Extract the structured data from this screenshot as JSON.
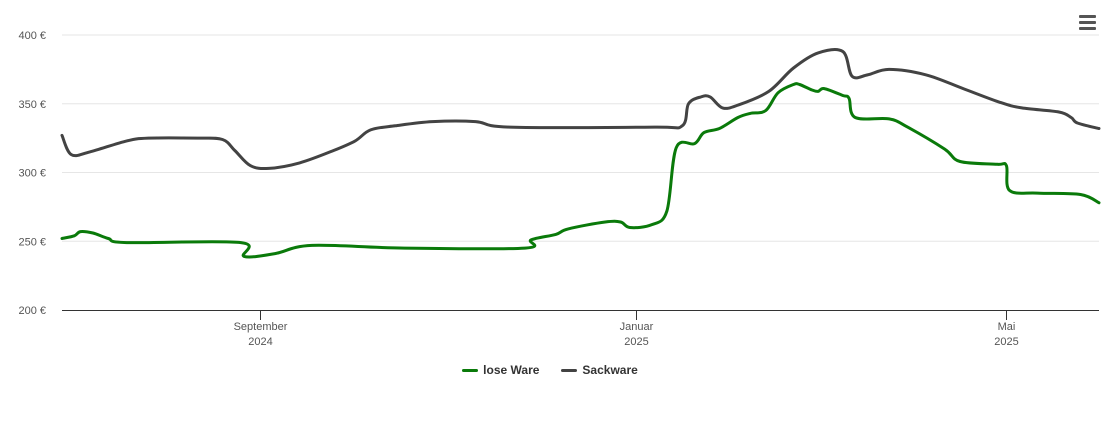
{
  "menu": {
    "icon": "hamburger-menu-icon"
  },
  "chart_data": {
    "type": "line",
    "title": "",
    "xlabel": "",
    "ylabel": "",
    "ylim": [
      200,
      400
    ],
    "y_ticks": [
      {
        "value": 200,
        "label": "200 €"
      },
      {
        "value": 250,
        "label": "250 €"
      },
      {
        "value": 300,
        "label": "300 €"
      },
      {
        "value": 350,
        "label": "350 €"
      },
      {
        "value": 400,
        "label": "400 €"
      }
    ],
    "xlim": [
      "2024-06-29",
      "2025-05-31"
    ],
    "x_ticks": [
      {
        "date": "2024-09-01",
        "line1": "September",
        "line2": "2024"
      },
      {
        "date": "2025-01-01",
        "line1": "Januar",
        "line2": "2025"
      },
      {
        "date": "2025-05-01",
        "line1": "Mai",
        "line2": "2025"
      }
    ],
    "grid": true,
    "legend_position": "bottom-center",
    "series": [
      {
        "name": "lose Ware",
        "color": "#0a7a0a",
        "points": [
          [
            "2024-06-29",
            252
          ],
          [
            "2024-07-03",
            254
          ],
          [
            "2024-07-05",
            257
          ],
          [
            "2024-07-09",
            256
          ],
          [
            "2024-07-14",
            252
          ],
          [
            "2024-07-20",
            249
          ],
          [
            "2024-08-26",
            249
          ],
          [
            "2024-08-27",
            239
          ],
          [
            "2024-09-06",
            241
          ],
          [
            "2024-09-18",
            247
          ],
          [
            "2024-10-18",
            245
          ],
          [
            "2024-11-26",
            245
          ],
          [
            "2024-11-28",
            251
          ],
          [
            "2024-12-06",
            255
          ],
          [
            "2024-12-10",
            259
          ],
          [
            "2024-12-22",
            264
          ],
          [
            "2024-12-27",
            264
          ],
          [
            "2024-12-30",
            260
          ],
          [
            "2025-01-06",
            262
          ],
          [
            "2025-01-11",
            272
          ],
          [
            "2025-01-14",
            318
          ],
          [
            "2025-01-20",
            321
          ],
          [
            "2025-01-23",
            329
          ],
          [
            "2025-01-28",
            332
          ],
          [
            "2025-02-03",
            340
          ],
          [
            "2025-02-07",
            343
          ],
          [
            "2025-02-12",
            345
          ],
          [
            "2025-02-16",
            358
          ],
          [
            "2025-02-21",
            364
          ],
          [
            "2025-02-23",
            364
          ],
          [
            "2025-02-27",
            360
          ],
          [
            "2025-03-01",
            359
          ],
          [
            "2025-03-03",
            361
          ],
          [
            "2025-03-09",
            356
          ],
          [
            "2025-03-11",
            354
          ],
          [
            "2025-03-13",
            340
          ],
          [
            "2025-03-24",
            339
          ],
          [
            "2025-03-30",
            333
          ],
          [
            "2025-04-11",
            317
          ],
          [
            "2025-04-16",
            308
          ],
          [
            "2025-04-28",
            306
          ],
          [
            "2025-05-01",
            305
          ],
          [
            "2025-05-02",
            287
          ],
          [
            "2025-05-11",
            285
          ],
          [
            "2025-05-25",
            284
          ],
          [
            "2025-05-31",
            278
          ]
        ]
      },
      {
        "name": "Sackware",
        "color": "#434343",
        "points": [
          [
            "2024-06-29",
            327
          ],
          [
            "2024-07-02",
            313
          ],
          [
            "2024-07-08",
            315
          ],
          [
            "2024-07-20",
            323
          ],
          [
            "2024-07-27",
            325
          ],
          [
            "2024-08-12",
            325
          ],
          [
            "2024-08-20",
            324
          ],
          [
            "2024-08-24",
            316
          ],
          [
            "2024-08-29",
            305
          ],
          [
            "2024-09-04",
            303
          ],
          [
            "2024-09-14",
            307
          ],
          [
            "2024-09-25",
            316
          ],
          [
            "2024-10-02",
            323
          ],
          [
            "2024-10-07",
            331
          ],
          [
            "2024-10-15",
            334
          ],
          [
            "2024-10-27",
            337
          ],
          [
            "2024-11-10",
            337
          ],
          [
            "2024-11-21",
            333
          ],
          [
            "2025-01-07",
            333
          ],
          [
            "2025-01-16",
            334
          ],
          [
            "2025-01-18",
            350
          ],
          [
            "2025-01-22",
            355
          ],
          [
            "2025-01-25",
            355
          ],
          [
            "2025-01-29",
            347
          ],
          [
            "2025-02-03",
            349
          ],
          [
            "2025-02-13",
            359
          ],
          [
            "2025-02-21",
            376
          ],
          [
            "2025-03-01",
            387
          ],
          [
            "2025-03-09",
            388
          ],
          [
            "2025-03-12",
            370
          ],
          [
            "2025-03-17",
            371
          ],
          [
            "2025-03-24",
            375
          ],
          [
            "2025-04-05",
            371
          ],
          [
            "2025-04-17",
            361
          ],
          [
            "2025-04-29",
            351
          ],
          [
            "2025-05-06",
            347
          ],
          [
            "2025-05-18",
            344
          ],
          [
            "2025-05-22",
            340
          ],
          [
            "2025-05-24",
            336
          ],
          [
            "2025-05-31",
            332
          ]
        ]
      }
    ]
  }
}
